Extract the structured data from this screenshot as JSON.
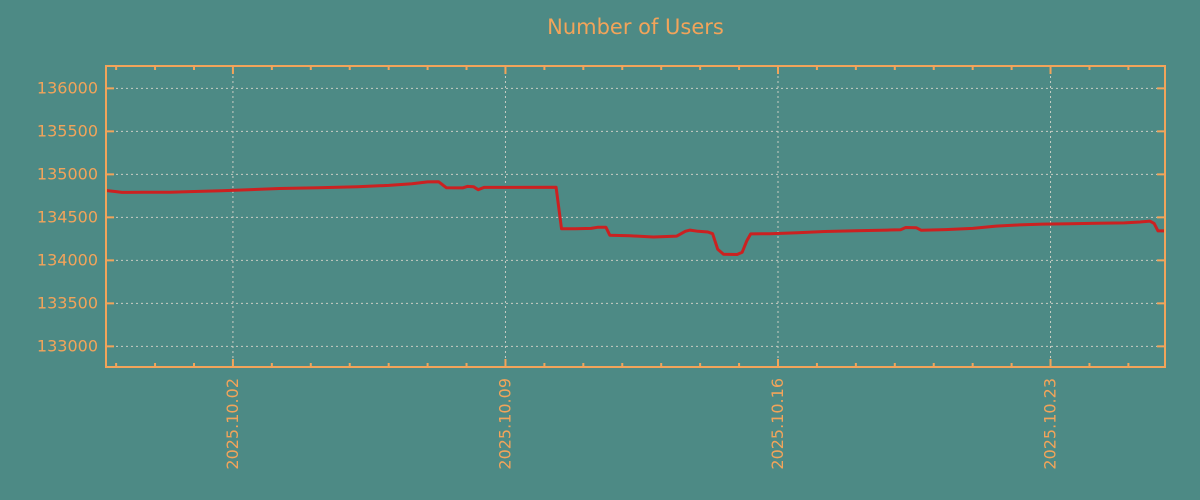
{
  "title": "Number of Users",
  "colors": {
    "background": "#4d8a85",
    "axis": "#f2a45a",
    "text": "#f2a45a",
    "grid": "#c9cdc4",
    "line": "#cb2121"
  },
  "chart_data": {
    "type": "line",
    "title": "Number of Users",
    "xlabel": "",
    "ylabel": "",
    "grid": "dashed",
    "legend": "none",
    "x_axis": {
      "unit": "date",
      "tick_rotation": -90,
      "minor_tick_interval_days": 1,
      "day0_label": "2025.10.02"
    },
    "xlim": [
      -3.26,
      23.94
    ],
    "ylim": [
      132760,
      136260
    ],
    "x_ticks": [
      {
        "day": 0,
        "label": "2025.10.02"
      },
      {
        "day": 7,
        "label": "2025.10.09"
      },
      {
        "day": 14,
        "label": "2025.10.16"
      },
      {
        "day": 21,
        "label": "2025.10.23"
      }
    ],
    "y_ticks": [
      {
        "value": 136000,
        "label": "136000"
      },
      {
        "value": 135500,
        "label": "135500"
      },
      {
        "value": 135000,
        "label": "135000"
      },
      {
        "value": 134500,
        "label": "134500"
      },
      {
        "value": 134000,
        "label": "134000"
      },
      {
        "value": 133500,
        "label": "133500"
      },
      {
        "value": 133000,
        "label": "133000"
      }
    ],
    "series": [
      {
        "name": "Number of Users",
        "color": "#cb2121",
        "points": [
          [
            -3.26,
            134812
          ],
          [
            -3.0,
            134800
          ],
          [
            -2.85,
            134790
          ],
          [
            -2.3,
            134792
          ],
          [
            -1.6,
            134792
          ],
          [
            -1.1,
            134800
          ],
          [
            -0.3,
            134810
          ],
          [
            0.4,
            134822
          ],
          [
            1.2,
            134836
          ],
          [
            2.2,
            134845
          ],
          [
            3.2,
            134856
          ],
          [
            4.0,
            134872
          ],
          [
            4.6,
            134890
          ],
          [
            5.0,
            134912
          ],
          [
            5.28,
            134915
          ],
          [
            5.34,
            134895
          ],
          [
            5.48,
            134845
          ],
          [
            5.9,
            134843
          ],
          [
            6.02,
            134860
          ],
          [
            6.18,
            134856
          ],
          [
            6.3,
            134822
          ],
          [
            6.45,
            134848
          ],
          [
            7.2,
            134848
          ],
          [
            8.3,
            134850
          ],
          [
            8.44,
            134368
          ],
          [
            8.8,
            134368
          ],
          [
            9.2,
            134372
          ],
          [
            9.38,
            134386
          ],
          [
            9.58,
            134386
          ],
          [
            9.68,
            134292
          ],
          [
            10.2,
            134286
          ],
          [
            10.8,
            134272
          ],
          [
            11.4,
            134282
          ],
          [
            11.62,
            134338
          ],
          [
            11.74,
            134352
          ],
          [
            11.95,
            134338
          ],
          [
            12.2,
            134330
          ],
          [
            12.32,
            134310
          ],
          [
            12.45,
            134130
          ],
          [
            12.6,
            134072
          ],
          [
            12.95,
            134068
          ],
          [
            13.08,
            134095
          ],
          [
            13.2,
            134230
          ],
          [
            13.3,
            134308
          ],
          [
            13.8,
            134310
          ],
          [
            14.5,
            134322
          ],
          [
            15.2,
            134336
          ],
          [
            16.0,
            134344
          ],
          [
            16.8,
            134352
          ],
          [
            17.15,
            134356
          ],
          [
            17.28,
            134382
          ],
          [
            17.55,
            134380
          ],
          [
            17.68,
            134350
          ],
          [
            18.3,
            134358
          ],
          [
            19.0,
            134372
          ],
          [
            19.6,
            134398
          ],
          [
            20.2,
            134412
          ],
          [
            20.8,
            134422
          ],
          [
            21.5,
            134426
          ],
          [
            22.2,
            134432
          ],
          [
            22.9,
            134436
          ],
          [
            23.3,
            134446
          ],
          [
            23.55,
            134456
          ],
          [
            23.66,
            134430
          ],
          [
            23.76,
            134342
          ],
          [
            23.94,
            134342
          ]
        ]
      }
    ]
  }
}
